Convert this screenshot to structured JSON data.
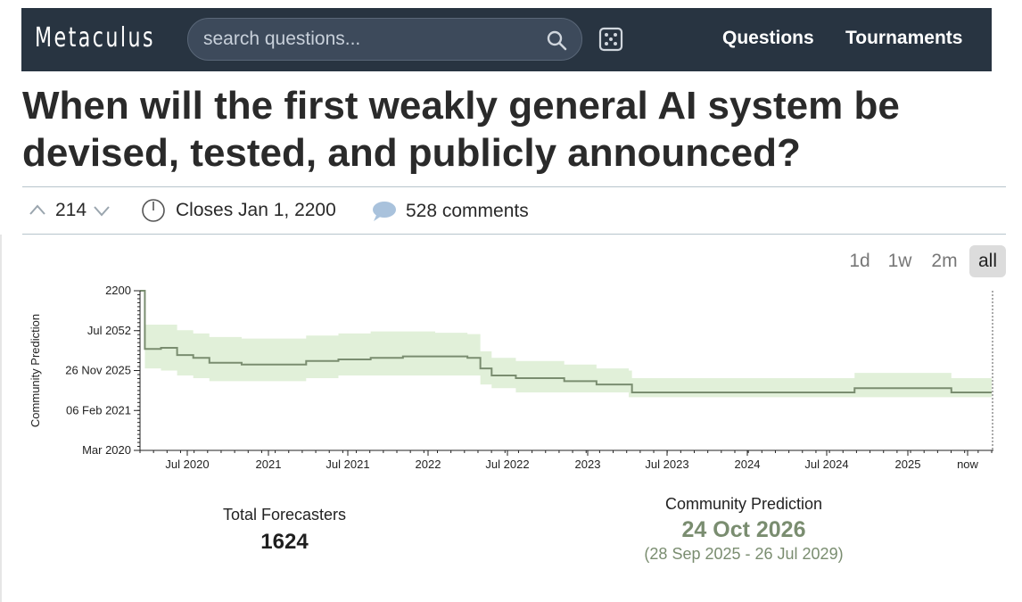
{
  "navbar": {
    "logo": "Metaculus",
    "search_placeholder": "search questions...",
    "links": [
      "Questions",
      "Tournaments"
    ]
  },
  "question": {
    "title": "When will the first weakly general AI system be devised, tested, and publicly announced?"
  },
  "meta": {
    "votes": "214",
    "closes": "Closes Jan 1, 2200",
    "comments": "528 comments"
  },
  "ranges": {
    "options": [
      "1d",
      "1w",
      "2m",
      "all"
    ],
    "selected": "all"
  },
  "stats": {
    "total_forecasters_label": "Total Forecasters",
    "total_forecasters": "1624",
    "cp_label": "Community Prediction",
    "cp_value": "24 Oct 2026",
    "cp_range": "(28 Sep 2025 - 26 Jul 2029)"
  },
  "colors": {
    "navbar": "#283441",
    "line": "#7a8d70",
    "band": "#e1f0d9"
  },
  "chart_data": {
    "type": "line",
    "ylabel": "Community Prediction",
    "xlabel": "",
    "y_ticks": [
      "2200",
      "Jul 2052",
      "26 Nov 2025",
      "06 Feb 2021",
      "Mar 2020"
    ],
    "x_ticks": [
      "Jul 2020",
      "2021",
      "Jul 2021",
      "2022",
      "Jul 2022",
      "2023",
      "Jul 2023",
      "2024",
      "Jul 2024",
      "2025",
      "now"
    ],
    "y_scale": "log",
    "x_range": [
      "Mar 2020",
      "now"
    ],
    "grid": false,
    "series": [
      {
        "x": [
          2020.17,
          2020.2,
          2020.3,
          2020.4,
          2020.5,
          2020.6,
          2020.8,
          2021.0,
          2021.2,
          2021.4,
          2021.6,
          2021.8,
          2022.0,
          2022.2,
          2022.28,
          2022.35,
          2022.5,
          2022.8,
          2023.0,
          2023.2,
          2023.22,
          2023.5,
          2023.8,
          2024.0,
          2024.3,
          2024.6,
          2024.9,
          2025.2,
          2025.4
        ],
        "y": [
          2200,
          2047,
          2048,
          2042,
          2040,
          2037,
          2036,
          2036,
          2038,
          2039,
          2040,
          2041,
          2041,
          2040,
          2034,
          2031,
          2030,
          2029,
          2028,
          2028,
          2026,
          2026,
          2026,
          2026,
          2026,
          2027,
          2027,
          2026,
          2026
        ],
        "lower": [
          2200,
          2034,
          2033,
          2031,
          2030,
          2029,
          2029,
          2029,
          2030,
          2031,
          2031,
          2031,
          2031,
          2031,
          2028,
          2027,
          2026,
          2026,
          2026,
          2025,
          2025,
          2025,
          2025,
          2025,
          2025,
          2025,
          2025,
          2025,
          2025
        ],
        "upper": [
          2200,
          2080,
          2080,
          2070,
          2065,
          2060,
          2058,
          2058,
          2062,
          2065,
          2068,
          2068,
          2066,
          2064,
          2045,
          2040,
          2038,
          2036,
          2034,
          2033,
          2030,
          2030,
          2030,
          2030,
          2030,
          2032,
          2032,
          2030,
          2030
        ]
      }
    ]
  }
}
